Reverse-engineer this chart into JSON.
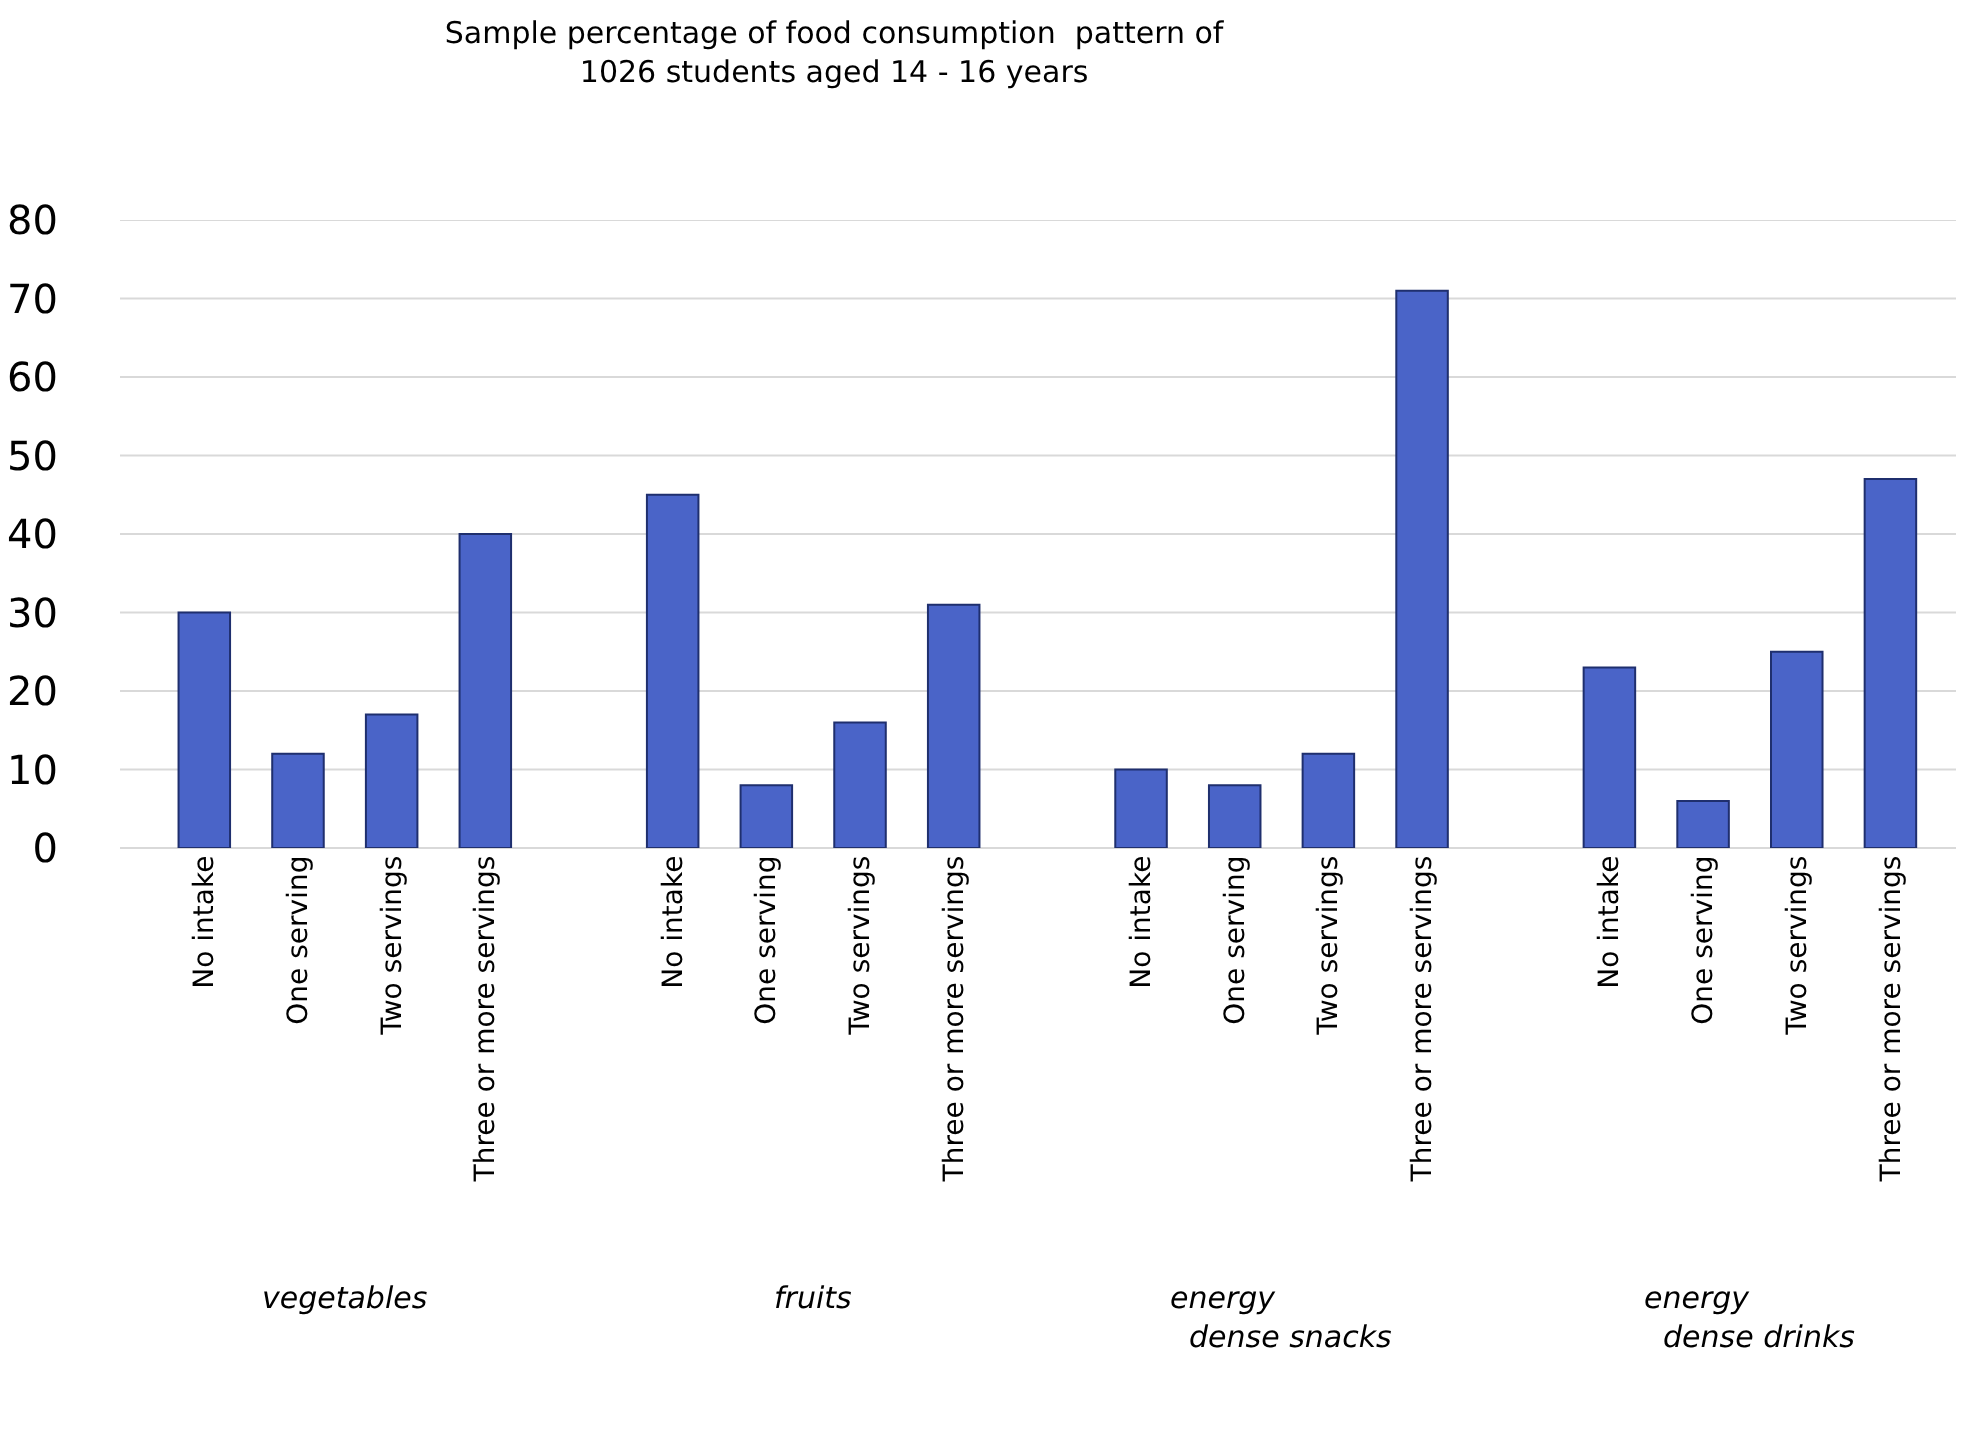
{
  "chart_data": {
    "type": "bar",
    "title": "Sample percentage of food consumption  pattern of\n1026 students aged 14 - 16 years",
    "categories": [
      "No intake",
      "One serving",
      "Two servings",
      "Three or more servings",
      null,
      "No intake",
      "One serving",
      "Two servings",
      "Three or more servings",
      null,
      "No intake",
      "One serving",
      "Two servings",
      "Three or more servings",
      null,
      "No intake",
      "One serving",
      "Two servings",
      "Three or more servings"
    ],
    "values": [
      30,
      12,
      17,
      40,
      null,
      45,
      8,
      16,
      31,
      null,
      10,
      8,
      12,
      71,
      null,
      23,
      6,
      25,
      47
    ],
    "color": "#4a64c8",
    "ylim": [
      0,
      80
    ],
    "yticks": [
      0,
      10,
      20,
      30,
      40,
      50,
      60,
      70,
      80
    ],
    "grid": "y",
    "annotations": [
      "vegetables",
      "fruits",
      "energy\n  dense snacks",
      "energy\n  dense drinks"
    ]
  }
}
